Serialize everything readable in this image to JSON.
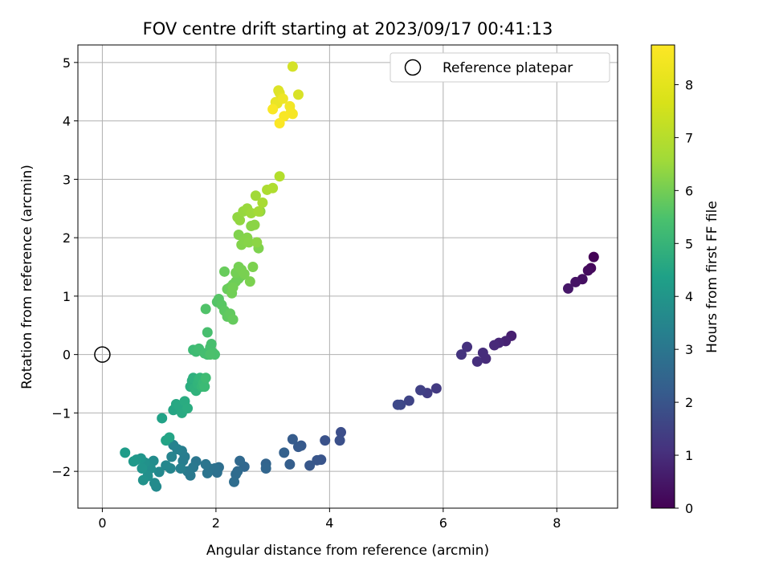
{
  "chart_data": {
    "type": "scatter",
    "title": "FOV centre drift starting at 2023/09/17 00:41:13",
    "xlabel": "Angular distance from reference (arcmin)",
    "ylabel": "Rotation from reference (arcmin)",
    "xlim": [
      -0.43,
      9.07
    ],
    "ylim": [
      -2.63,
      5.3
    ],
    "xticks": [
      0,
      2,
      4,
      6,
      8
    ],
    "yticks": [
      -2,
      -1,
      0,
      1,
      2,
      3,
      4,
      5
    ],
    "grid": true,
    "legend": {
      "placement": "top-right",
      "entries": [
        "Reference platepar"
      ]
    },
    "reference_point": {
      "x": 0,
      "y": 0,
      "label": "Reference platepar"
    },
    "colorbar": {
      "label": "Hours from first FF file",
      "range": [
        0,
        8.75
      ],
      "ticks": [
        0,
        1,
        2,
        3,
        4,
        5,
        6,
        7,
        8
      ],
      "colormap": "viridis"
    },
    "series": [
      {
        "x": [
          8.65,
          8.6,
          8.55,
          8.45,
          8.33,
          8.2,
          7.2,
          7.1,
          6.98,
          6.9,
          6.75,
          6.7,
          6.6,
          6.42,
          6.32,
          5.88,
          5.72,
          5.6,
          5.4,
          5.25,
          5.2,
          4.2,
          4.18,
          3.92,
          3.85,
          3.78,
          3.65,
          3.5,
          3.45,
          3.35,
          3.3,
          3.2
        ],
        "y": [
          1.67,
          1.48,
          1.44,
          1.29,
          1.24,
          1.13,
          0.32,
          0.23,
          0.2,
          0.16,
          -0.07,
          0.03,
          -0.12,
          0.13,
          0.0,
          -0.58,
          -0.66,
          -0.61,
          -0.79,
          -0.86,
          -0.86,
          -1.33,
          -1.47,
          -1.47,
          -1.8,
          -1.81,
          -1.9,
          -1.56,
          -1.58,
          -1.45,
          -1.88,
          -1.68
        ],
        "t": [
          0.05,
          0.15,
          0.25,
          0.35,
          0.45,
          0.55,
          0.75,
          0.85,
          0.95,
          1.02,
          1.08,
          1.12,
          1.18,
          1.25,
          1.32,
          1.5,
          1.6,
          1.7,
          1.8,
          1.9,
          1.95,
          2.1,
          2.15,
          2.22,
          2.3,
          2.35,
          2.4,
          2.45,
          2.5,
          2.55,
          2.6,
          2.7
        ]
      },
      {
        "x": [
          2.88,
          2.88,
          2.5,
          2.42,
          2.38,
          2.35,
          2.32,
          2.05,
          2.02,
          1.98,
          1.88,
          1.85,
          1.82,
          1.65,
          1.6,
          1.55,
          1.5,
          1.45,
          1.42,
          1.4,
          1.38,
          1.32,
          1.25,
          1.22,
          1.2,
          1.12,
          1.0,
          0.95,
          0.92,
          0.9,
          0.85,
          0.8,
          0.75,
          0.72,
          0.7,
          0.68,
          0.6,
          0.55,
          0.4
        ],
        "y": [
          -1.87,
          -1.95,
          -1.92,
          -1.82,
          -2.0,
          -2.05,
          -2.18,
          -1.93,
          -2.02,
          -1.95,
          -1.95,
          -2.03,
          -1.88,
          -1.83,
          -1.93,
          -2.07,
          -2.0,
          -1.75,
          -1.82,
          -1.65,
          -1.95,
          -1.62,
          -1.55,
          -1.75,
          -1.95,
          -1.9,
          -2.01,
          -2.26,
          -2.2,
          -1.82,
          -1.95,
          -2.08,
          -1.85,
          -2.15,
          -1.95,
          -1.78,
          -1.8,
          -1.83,
          -1.68
        ],
        "t": [
          2.8,
          2.85,
          2.9,
          2.95,
          3.0,
          3.05,
          3.1,
          3.15,
          3.2,
          3.25,
          3.3,
          3.35,
          3.4,
          3.45,
          3.5,
          3.55,
          3.6,
          3.65,
          3.7,
          3.75,
          3.8,
          3.85,
          3.9,
          3.95,
          4.0,
          4.05,
          4.1,
          4.15,
          4.2,
          4.25,
          4.3,
          4.35,
          4.4,
          4.45,
          4.5,
          4.55,
          4.62,
          4.7,
          4.8
        ]
      },
      {
        "x": [
          1.05,
          1.12,
          1.18,
          1.25,
          1.3,
          1.35,
          1.4,
          1.45,
          1.5,
          1.55,
          1.58,
          1.6,
          1.62,
          1.65,
          1.68,
          1.7,
          1.72,
          1.75,
          1.78,
          1.8,
          1.82,
          1.85,
          1.88,
          1.9,
          1.92,
          1.95,
          1.98,
          1.6,
          1.65,
          1.7,
          1.8,
          1.85,
          1.9
        ],
        "y": [
          -1.09,
          -1.47,
          -1.42,
          -0.95,
          -0.85,
          -0.88,
          -1.0,
          -0.8,
          -0.92,
          -0.55,
          -0.45,
          -0.4,
          -0.58,
          -0.62,
          -0.5,
          -0.42,
          -0.4,
          -0.55,
          -0.48,
          -0.55,
          -0.4,
          0.0,
          0.05,
          0.12,
          0.18,
          0.03,
          0.0,
          0.08,
          0.05,
          0.1,
          0.02,
          0.38,
          0.0
        ],
        "t": [
          5.0,
          5.05,
          5.1,
          5.15,
          5.2,
          5.25,
          5.3,
          5.35,
          5.4,
          5.45,
          5.5,
          5.55,
          5.6,
          5.65,
          5.7,
          5.75,
          5.8,
          5.85,
          5.9,
          5.95,
          6.0,
          6.05,
          6.1,
          6.12,
          6.15,
          6.18,
          6.2,
          5.95,
          6.0,
          6.05,
          6.1,
          6.15,
          6.22
        ]
      },
      {
        "x": [
          1.82,
          2.02,
          2.05,
          2.1,
          2.15,
          2.2,
          2.25,
          2.3,
          2.15,
          2.2,
          2.25,
          2.3,
          2.35,
          2.4,
          2.45,
          2.28,
          2.3,
          2.35,
          2.4,
          2.45,
          2.5,
          2.6,
          2.65,
          2.75,
          2.4,
          2.45,
          2.5,
          2.55,
          2.58,
          2.62,
          2.68,
          2.72,
          2.78,
          2.38,
          2.42,
          2.48,
          2.55,
          2.62,
          2.7,
          2.75,
          2.82,
          2.9,
          3.0,
          3.12
        ],
        "y": [
          0.78,
          0.9,
          0.95,
          0.85,
          0.75,
          0.65,
          0.7,
          0.6,
          1.42,
          1.12,
          1.15,
          1.2,
          1.25,
          1.3,
          1.35,
          1.05,
          1.15,
          1.4,
          1.5,
          1.45,
          1.38,
          1.25,
          1.5,
          1.82,
          2.05,
          1.88,
          1.95,
          2.0,
          1.92,
          2.2,
          2.22,
          1.92,
          2.45,
          2.35,
          2.3,
          2.45,
          2.5,
          2.42,
          2.72,
          2.45,
          2.6,
          2.82,
          2.85,
          3.05
        ],
        "t": [
          6.3,
          6.35,
          6.4,
          6.45,
          6.5,
          6.55,
          6.6,
          6.65,
          6.7,
          6.72,
          6.74,
          6.76,
          6.78,
          6.8,
          6.82,
          6.84,
          6.86,
          6.88,
          6.9,
          6.92,
          6.95,
          6.98,
          7.0,
          7.02,
          7.05,
          7.08,
          7.1,
          7.12,
          7.15,
          7.18,
          7.2,
          7.22,
          7.25,
          7.28,
          7.3,
          7.35,
          7.4,
          7.45,
          7.5,
          7.55,
          7.6,
          7.65,
          7.7,
          7.75
        ]
      },
      {
        "x": [
          3.35,
          3.45,
          3.1,
          3.12,
          3.15,
          3.05,
          3.08,
          3.18,
          3.3,
          3.32,
          3.35,
          3.2,
          3.0,
          3.12
        ],
        "y": [
          4.93,
          4.45,
          4.52,
          4.48,
          4.4,
          4.32,
          4.3,
          4.38,
          4.25,
          4.15,
          4.12,
          4.08,
          4.2,
          3.96
        ],
        "t": [
          8.2,
          8.25,
          8.3,
          8.35,
          8.4,
          8.45,
          8.5,
          8.55,
          8.6,
          8.62,
          8.65,
          8.68,
          8.7,
          8.72
        ]
      }
    ]
  }
}
